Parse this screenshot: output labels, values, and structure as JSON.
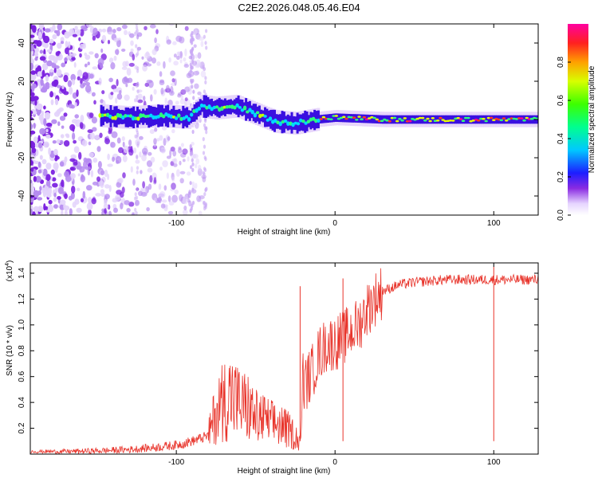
{
  "title": "C2E2.2026.048.05.46.E04",
  "colors": {
    "snr_line": "#e8332a",
    "axis": "#000000",
    "background": "#ffffff"
  },
  "chart_data": [
    {
      "type": "heatmap",
      "name": "spectrogram",
      "xlabel": "Height of straight line (km)",
      "ylabel": "Frequency (Hz)",
      "xlim": [
        -192,
        128
      ],
      "ylim": [
        -50,
        50
      ],
      "x_ticks": [
        -100,
        0,
        100
      ],
      "x_tick_labels": [
        "-100",
        "0",
        "100"
      ],
      "y_ticks": [
        -40,
        -20,
        0,
        20,
        40
      ],
      "y_tick_labels": [
        "-40",
        "-20",
        "0",
        "20",
        "40"
      ],
      "signal_ridge": [
        {
          "x": -148,
          "y": 2
        },
        {
          "x": -130,
          "y": 1
        },
        {
          "x": -110,
          "y": 2
        },
        {
          "x": -92,
          "y": 1
        },
        {
          "x": -85,
          "y": 7
        },
        {
          "x": -75,
          "y": 6
        },
        {
          "x": -62,
          "y": 7
        },
        {
          "x": -50,
          "y": 3
        },
        {
          "x": -38,
          "y": -1
        },
        {
          "x": -25,
          "y": -2
        },
        {
          "x": -12,
          "y": 0
        },
        {
          "x": 0,
          "y": 1
        },
        {
          "x": 30,
          "y": 0
        },
        {
          "x": 128,
          "y": 0
        }
      ],
      "colorbar": {
        "label": "Normalized spectral amplitude",
        "range": [
          0,
          1
        ],
        "ticks": [
          0.0,
          0.2,
          0.4,
          0.6,
          0.8
        ],
        "tick_labels": [
          "0.0",
          "0.2",
          "0.4",
          "0.6",
          "0.8"
        ]
      }
    },
    {
      "type": "line",
      "name": "snr",
      "xlabel": "Height of straight line (km)",
      "ylabel": "SNR (10 * v/v)",
      "y_multiplier_label": "(x10",
      "y_multiplier_exp": "4",
      "xlim": [
        -192,
        128
      ],
      "ylim": [
        0,
        1.48
      ],
      "x_ticks": [
        -100,
        0,
        100
      ],
      "x_tick_labels": [
        "-100",
        "0",
        "100"
      ],
      "y_ticks": [
        0.2,
        0.4,
        0.6,
        0.8,
        1.0,
        1.2,
        1.4
      ],
      "y_tick_labels": [
        "0.2",
        "0.4",
        "0.6",
        "0.8",
        "1.0",
        "1.2",
        "1.4"
      ],
      "series": [
        {
          "name": "SNR",
          "x": [
            -192,
            -170,
            -150,
            -130,
            -115,
            -100,
            -90,
            -80,
            -75,
            -70,
            -65,
            -60,
            -55,
            -50,
            -45,
            -40,
            -35,
            -30,
            -25,
            -22,
            -20,
            -15,
            -10,
            -5,
            0,
            5,
            10,
            15,
            20,
            25,
            30,
            40,
            50,
            60,
            70,
            80,
            90,
            100,
            110,
            120,
            128
          ],
          "y": [
            0.02,
            0.02,
            0.025,
            0.035,
            0.05,
            0.07,
            0.1,
            0.14,
            0.35,
            0.45,
            0.48,
            0.4,
            0.38,
            0.3,
            0.28,
            0.25,
            0.24,
            0.2,
            0.15,
            0.1,
            0.52,
            0.62,
            0.78,
            0.85,
            0.86,
            0.9,
            0.95,
            1.0,
            1.12,
            1.2,
            1.26,
            1.31,
            1.33,
            1.34,
            1.35,
            1.35,
            1.35,
            1.35,
            1.35,
            1.35,
            1.35
          ]
        }
      ],
      "annotations": [
        {
          "x": -22,
          "y": 1.3
        },
        {
          "x": 5,
          "y": 1.36
        },
        {
          "x": 100,
          "y": 1.45
        }
      ]
    }
  ]
}
